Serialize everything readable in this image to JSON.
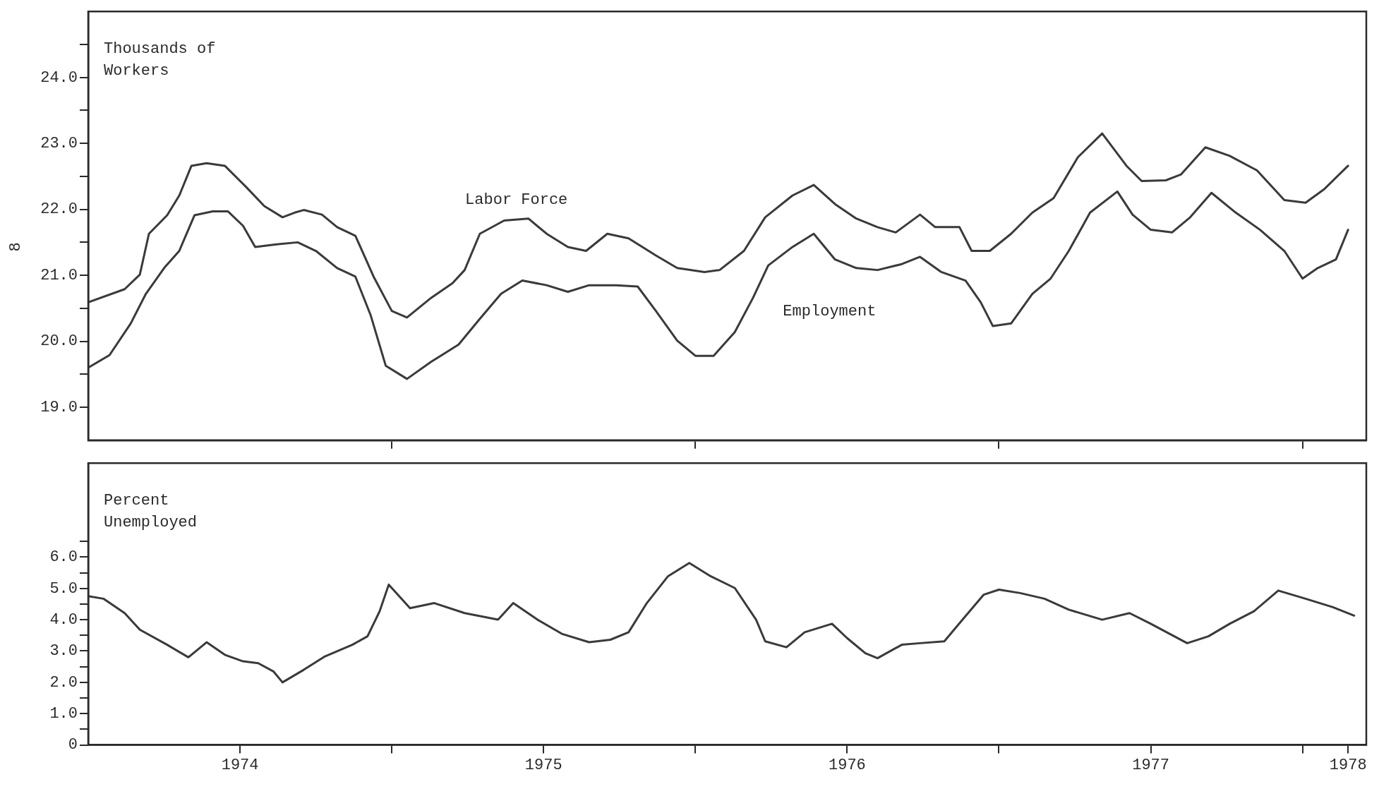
{
  "chart_data": [
    {
      "type": "line",
      "ylabel": "Thousands of Workers",
      "xlim": [
        1974,
        1978.21
      ],
      "xticks": [
        {
          "value": 1975,
          "label": null
        },
        {
          "value": 1976,
          "label": null
        },
        {
          "value": 1977,
          "label": null
        },
        {
          "value": 1978,
          "label": null
        }
      ],
      "ylim": [
        18.5,
        25
      ],
      "yticks": [
        {
          "value": 19,
          "label": "19.0"
        },
        {
          "value": 19.5,
          "label": null
        },
        {
          "value": 20,
          "label": "20.0"
        },
        {
          "value": 20.5,
          "label": null
        },
        {
          "value": 21,
          "label": "21.0"
        },
        {
          "value": 21.5,
          "label": null
        },
        {
          "value": 22,
          "label": "22.0"
        },
        {
          "value": 22.5,
          "label": null
        },
        {
          "value": 23,
          "label": "23.0"
        },
        {
          "value": 23.5,
          "label": null
        },
        {
          "value": 24,
          "label": "24.0"
        },
        {
          "value": 24.5,
          "label": null
        }
      ],
      "tick_labels": "y",
      "annotations": [
        "8",
        "Labor Force",
        "Employment"
      ],
      "series": [
        {
          "color": "#3a3a3a",
          "x": [
            1974.0,
            1974.12,
            1974.17,
            1974.2,
            1974.26,
            1974.3,
            1974.34,
            1974.39,
            1974.45,
            1974.52,
            1974.58,
            1974.64,
            1974.68,
            1974.71,
            1974.77,
            1974.82,
            1974.88,
            1974.94,
            1975.0,
            1975.05,
            1975.13,
            1975.2,
            1975.24,
            1975.29,
            1975.37,
            1975.45,
            1975.51,
            1975.58,
            1975.64,
            1975.71,
            1975.78,
            1975.87,
            1975.94,
            1976.03,
            1976.08,
            1976.16,
            1976.23,
            1976.32,
            1976.39,
            1976.46,
            1976.53,
            1976.6,
            1976.66,
            1976.74,
            1976.79,
            1976.87,
            1976.91,
            1976.97,
            1977.04,
            1977.11,
            1977.18,
            1977.26,
            1977.34,
            1977.42,
            1977.47,
            1977.55,
            1977.6,
            1977.68,
            1977.76,
            1977.85,
            1977.94,
            1978.01,
            1978.07,
            1978.15
          ],
          "values": [
            20.59,
            20.79,
            21.01,
            21.63,
            21.91,
            22.21,
            22.66,
            22.7,
            22.66,
            22.34,
            22.05,
            21.88,
            21.95,
            21.99,
            21.92,
            21.73,
            21.6,
            20.98,
            20.46,
            20.36,
            20.66,
            20.88,
            21.08,
            21.63,
            21.83,
            21.86,
            21.63,
            21.43,
            21.37,
            21.63,
            21.56,
            21.3,
            21.11,
            21.05,
            21.08,
            21.37,
            21.88,
            22.21,
            22.37,
            22.08,
            21.86,
            21.73,
            21.65,
            21.92,
            21.73,
            21.73,
            21.37,
            21.37,
            21.63,
            21.95,
            22.17,
            22.79,
            23.15,
            22.66,
            22.43,
            22.44,
            22.53,
            22.94,
            22.81,
            22.59,
            22.14,
            22.1,
            22.3,
            22.66
          ]
        },
        {
          "color": "#3a3a3a",
          "x": [
            1974.0,
            1974.07,
            1974.14,
            1974.19,
            1974.25,
            1974.3,
            1974.35,
            1974.41,
            1974.46,
            1974.51,
            1974.55,
            1974.62,
            1974.69,
            1974.75,
            1974.82,
            1974.88,
            1974.93,
            1974.98,
            1975.05,
            1975.13,
            1975.22,
            1975.29,
            1975.36,
            1975.43,
            1975.51,
            1975.58,
            1975.65,
            1975.74,
            1975.81,
            1975.87,
            1975.94,
            1976.0,
            1976.06,
            1976.13,
            1976.19,
            1976.24,
            1976.32,
            1976.39,
            1976.46,
            1976.53,
            1976.6,
            1976.68,
            1976.74,
            1976.81,
            1976.89,
            1976.94,
            1976.98,
            1977.04,
            1977.11,
            1977.17,
            1977.23,
            1977.3,
            1977.39,
            1977.44,
            1977.5,
            1977.57,
            1977.63,
            1977.7,
            1977.78,
            1977.86,
            1977.94,
            1978.0,
            1978.05,
            1978.11,
            1978.15
          ],
          "values": [
            19.6,
            19.79,
            20.27,
            20.72,
            21.11,
            21.37,
            21.91,
            21.97,
            21.97,
            21.75,
            21.43,
            21.47,
            21.5,
            21.37,
            21.11,
            20.98,
            20.4,
            19.63,
            19.43,
            19.69,
            19.95,
            20.34,
            20.72,
            20.92,
            20.85,
            20.75,
            20.85,
            20.85,
            20.83,
            20.46,
            20.01,
            19.78,
            19.78,
            20.14,
            20.66,
            21.15,
            21.43,
            21.63,
            21.24,
            21.11,
            21.08,
            21.17,
            21.28,
            21.05,
            20.92,
            20.59,
            20.23,
            20.27,
            20.72,
            20.95,
            21.37,
            21.95,
            22.27,
            21.92,
            21.69,
            21.65,
            21.88,
            22.25,
            21.95,
            21.69,
            21.37,
            20.95,
            21.11,
            21.24,
            21.69
          ]
        }
      ]
    },
    {
      "type": "line",
      "ylabel": "Percent Unemployed",
      "xlim": [
        1974,
        1978.21
      ],
      "xticks": [
        {
          "value": 1974.5,
          "label": "1974"
        },
        {
          "value": 1975,
          "label": null
        },
        {
          "value": 1975.5,
          "label": "1975"
        },
        {
          "value": 1976,
          "label": null
        },
        {
          "value": 1976.5,
          "label": "1976"
        },
        {
          "value": 1977,
          "label": null
        },
        {
          "value": 1977.5,
          "label": "1977"
        },
        {
          "value": 1978,
          "label": null
        },
        {
          "value": 1978.15,
          "label": "1978"
        }
      ],
      "ylim": [
        0,
        9
      ],
      "yticks": [
        0,
        {
          "value": 0.5,
          "label": null
        },
        {
          "value": 1,
          "label": "1.0"
        },
        {
          "value": 1.5,
          "label": null
        },
        {
          "value": 2,
          "label": "2.0"
        },
        {
          "value": 2.5,
          "label": null
        },
        {
          "value": 3,
          "label": "3.0"
        },
        {
          "value": 3.5,
          "label": null
        },
        {
          "value": 4,
          "label": "4.0"
        },
        {
          "value": 4.5,
          "label": null
        },
        {
          "value": 5,
          "label": "5.0"
        },
        {
          "value": 5.5,
          "label": null
        },
        {
          "value": 6,
          "label": "6.0"
        },
        {
          "value": 6.5,
          "label": null
        }
      ],
      "color": "#3a3a3a",
      "x": [
        1974.0,
        1974.05,
        1974.12,
        1974.17,
        1974.26,
        1974.33,
        1974.39,
        1974.45,
        1974.51,
        1974.56,
        1974.61,
        1974.64,
        1974.71,
        1974.78,
        1974.87,
        1974.92,
        1974.96,
        1974.99,
        1975.06,
        1975.14,
        1975.24,
        1975.35,
        1975.4,
        1975.48,
        1975.56,
        1975.65,
        1975.72,
        1975.78,
        1975.84,
        1975.91,
        1975.98,
        1976.05,
        1976.13,
        1976.2,
        1976.23,
        1976.3,
        1976.36,
        1976.45,
        1976.5,
        1976.56,
        1976.6,
        1976.68,
        1976.74,
        1976.82,
        1976.88,
        1976.95,
        1977.0,
        1977.07,
        1977.15,
        1977.23,
        1977.34,
        1977.43,
        1977.5,
        1977.62,
        1977.69,
        1977.76,
        1977.84,
        1977.92,
        1978.01,
        1978.1,
        1978.17
      ],
      "values": [
        4.75,
        4.67,
        4.21,
        3.68,
        3.2,
        2.8,
        3.28,
        2.88,
        2.67,
        2.61,
        2.35,
        2.0,
        2.4,
        2.83,
        3.2,
        3.47,
        4.27,
        5.12,
        4.37,
        4.53,
        4.21,
        4.0,
        4.53,
        4.0,
        3.55,
        3.28,
        3.36,
        3.6,
        4.53,
        5.39,
        5.81,
        5.39,
        5.01,
        4.0,
        3.31,
        3.12,
        3.6,
        3.87,
        3.41,
        2.93,
        2.77,
        3.2,
        3.25,
        3.31,
        4.0,
        4.8,
        4.96,
        4.85,
        4.67,
        4.32,
        4.0,
        4.21,
        3.87,
        3.25,
        3.47,
        3.87,
        4.27,
        4.93,
        4.67,
        4.4,
        4.13
      ]
    }
  ]
}
